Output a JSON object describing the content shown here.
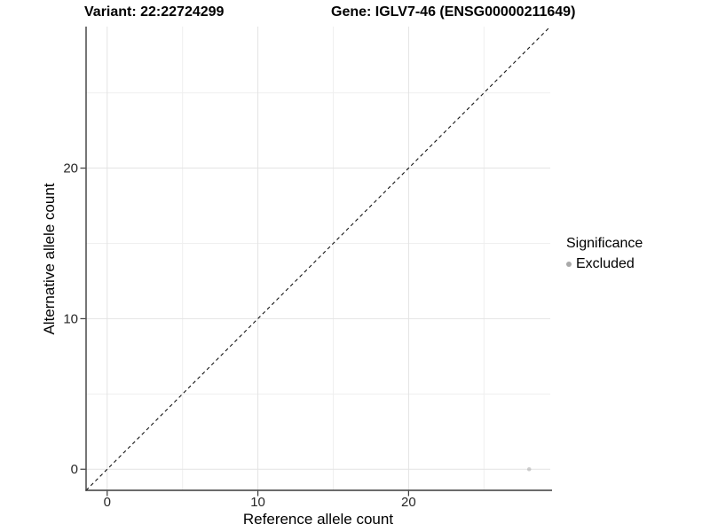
{
  "header": {
    "variant_title": "Variant: 22:22724299",
    "gene_title": "Gene: IGLV7-46 (ENSG00000211649)"
  },
  "legend": {
    "title": "Significance",
    "items": [
      {
        "label": "Excluded",
        "color": "#a9a9a9"
      }
    ]
  },
  "chart_data": {
    "type": "scatter",
    "title": "Variant: 22:22724299  Gene: IGLV7-46 (ENSG00000211649)",
    "xlabel": "Reference allele count",
    "ylabel": "Alternative allele count",
    "xlim": [
      -1.4,
      29.4
    ],
    "ylim": [
      -1.4,
      29.4
    ],
    "x_major_ticks": [
      0,
      10,
      20
    ],
    "y_major_ticks": [
      0,
      10,
      20
    ],
    "x_minor_ticks": [
      5,
      15,
      25
    ],
    "y_minor_ticks": [
      5,
      15,
      25
    ],
    "grid": true,
    "legend_position": "right",
    "legend_title": "Significance",
    "series": [
      {
        "name": "Excluded",
        "color": "#a9a9a9",
        "point_opacity": 0.55,
        "points": [
          {
            "x": 28,
            "y": 0
          }
        ]
      }
    ],
    "reference_line": {
      "type": "identity",
      "from": [
        -1.4,
        -1.4
      ],
      "to": [
        29.4,
        29.4
      ],
      "style": "dashed",
      "color": "#141414"
    },
    "colors": {
      "grid_major": "#e3e3e3",
      "grid_minor": "#efefef",
      "axis_line": "#3b3b3b",
      "tick_label": "#262626",
      "panel_background": "#ffffff"
    }
  }
}
